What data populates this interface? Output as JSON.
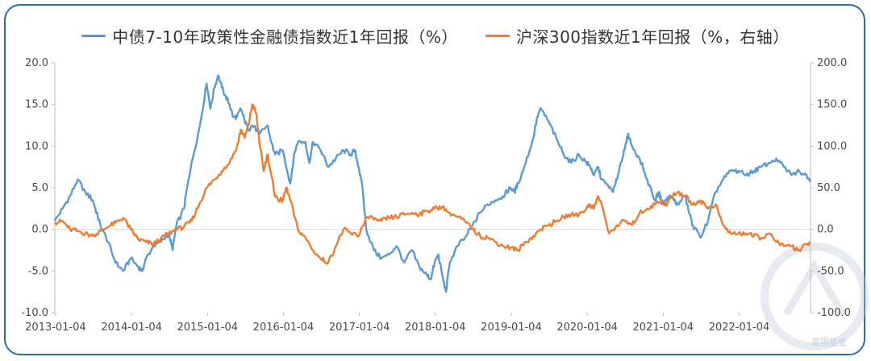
{
  "chart_data": {
    "type": "line",
    "title": "",
    "xlabel": "",
    "ylabel": "",
    "x_ticks": [
      "2013-01-04",
      "2014-01-04",
      "2015-01-04",
      "2016-01-04",
      "2017-01-04",
      "2018-01-04",
      "2019-01-04",
      "2020-01-04",
      "2021-01-04",
      "2022-01-04"
    ],
    "ylim_left": [
      -10,
      20
    ],
    "ylim_right": [
      -100,
      200
    ],
    "left_ticks": [
      "20.0",
      "15.0",
      "10.0",
      "5.0",
      "0.0",
      "-5.0",
      "-10.0"
    ],
    "right_ticks": [
      "200.0",
      "150.0",
      "100.0",
      "50.0",
      "0.0",
      "-50.0",
      "-100.0"
    ],
    "x_range": [
      2013.0,
      2022.95
    ],
    "grid": false,
    "legend_position": "top",
    "series": [
      {
        "name": "中债7-10年政策性金融债指数近1年回报（%）",
        "axis": "left",
        "color": "#5b9bd5",
        "x": [
          2013.0,
          2013.1,
          2013.2,
          2013.3,
          2013.4,
          2013.5,
          2013.55,
          2013.6,
          2013.7,
          2013.8,
          2013.9,
          2014.0,
          2014.1,
          2014.15,
          2014.2,
          2014.3,
          2014.4,
          2014.5,
          2014.55,
          2014.6,
          2014.7,
          2014.75,
          2014.8,
          2014.9,
          2015.0,
          2015.05,
          2015.1,
          2015.15,
          2015.2,
          2015.25,
          2015.3,
          2015.35,
          2015.4,
          2015.45,
          2015.5,
          2015.55,
          2015.6,
          2015.7,
          2015.8,
          2015.85,
          2015.9,
          2016.0,
          2016.1,
          2016.15,
          2016.2,
          2016.3,
          2016.35,
          2016.4,
          2016.5,
          2016.6,
          2016.7,
          2016.8,
          2016.9,
          2016.95,
          2017.0,
          2017.05,
          2017.1,
          2017.2,
          2017.3,
          2017.4,
          2017.5,
          2017.6,
          2017.7,
          2017.8,
          2017.9,
          2017.95,
          2018.0,
          2018.05,
          2018.1,
          2018.15,
          2018.2,
          2018.3,
          2018.4,
          2018.5,
          2018.6,
          2018.7,
          2018.8,
          2018.9,
          2018.95,
          2019.0,
          2019.05,
          2019.1,
          2019.2,
          2019.3,
          2019.35,
          2019.4,
          2019.5,
          2019.6,
          2019.7,
          2019.8,
          2019.9,
          2020.0,
          2020.05,
          2020.1,
          2020.15,
          2020.2,
          2020.3,
          2020.35,
          2020.4,
          2020.45,
          2020.5,
          2020.55,
          2020.6,
          2020.7,
          2020.8,
          2020.9,
          2020.95,
          2021.0,
          2021.05,
          2021.1,
          2021.15,
          2021.2,
          2021.3,
          2021.35,
          2021.4,
          2021.5,
          2021.6,
          2021.7,
          2021.8,
          2021.9,
          2022.0,
          2022.1,
          2022.2,
          2022.3,
          2022.4,
          2022.5,
          2022.6,
          2022.7,
          2022.8,
          2022.9,
          2022.95
        ],
        "values": [
          1.0,
          2.5,
          4.0,
          6.0,
          4.5,
          3.5,
          2.0,
          0.5,
          -1.5,
          -4.0,
          -5.0,
          -3.5,
          -4.5,
          -5.0,
          -3.5,
          -2.0,
          -1.5,
          -0.5,
          -2.5,
          0.5,
          2.5,
          5.5,
          8.0,
          12.0,
          17.5,
          14.5,
          17.0,
          18.5,
          17.0,
          16.0,
          15.0,
          13.5,
          13.5,
          14.5,
          13.0,
          12.0,
          12.5,
          11.5,
          12.5,
          10.5,
          9.0,
          9.5,
          5.5,
          9.0,
          10.5,
          10.5,
          8.0,
          10.5,
          9.5,
          7.5,
          8.5,
          9.5,
          9.0,
          9.5,
          7.5,
          5.0,
          0.0,
          -2.5,
          -3.5,
          -3.0,
          -2.0,
          -4.0,
          -2.5,
          -4.5,
          -5.5,
          -6.0,
          -4.0,
          -3.0,
          -5.5,
          -7.5,
          -4.0,
          -2.0,
          -1.0,
          0.5,
          2.0,
          3.0,
          3.5,
          4.0,
          4.5,
          5.0,
          4.5,
          5.5,
          8.0,
          11.0,
          13.5,
          14.5,
          13.0,
          11.0,
          9.0,
          8.0,
          9.0,
          8.0,
          7.5,
          6.5,
          7.5,
          6.0,
          5.0,
          4.5,
          6.0,
          8.0,
          9.5,
          11.5,
          10.0,
          8.5,
          6.0,
          3.5,
          4.5,
          3.0,
          3.5,
          4.0,
          3.5,
          3.0,
          4.0,
          2.0,
          0.5,
          -1.0,
          1.0,
          4.5,
          6.0,
          7.0,
          7.0,
          6.5,
          7.0,
          7.5,
          8.0,
          8.5,
          7.5,
          6.5,
          7.0,
          6.5,
          6.0
        ]
      },
      {
        "name": "沪深300指数近1年回报（%，右轴）",
        "axis": "right",
        "color": "#ed7d31",
        "x": [
          2013.0,
          2013.1,
          2013.2,
          2013.3,
          2013.4,
          2013.5,
          2013.6,
          2013.7,
          2013.8,
          2013.9,
          2014.0,
          2014.1,
          2014.2,
          2014.3,
          2014.4,
          2014.5,
          2014.6,
          2014.7,
          2014.8,
          2014.9,
          2015.0,
          2015.1,
          2015.2,
          2015.3,
          2015.4,
          2015.45,
          2015.5,
          2015.55,
          2015.6,
          2015.65,
          2015.7,
          2015.75,
          2015.8,
          2015.85,
          2015.9,
          2015.95,
          2016.0,
          2016.05,
          2016.1,
          2016.2,
          2016.3,
          2016.4,
          2016.5,
          2016.6,
          2016.7,
          2016.8,
          2016.9,
          2017.0,
          2017.1,
          2017.2,
          2017.3,
          2017.4,
          2017.5,
          2017.6,
          2017.7,
          2017.8,
          2017.9,
          2018.0,
          2018.1,
          2018.2,
          2018.3,
          2018.4,
          2018.5,
          2018.6,
          2018.7,
          2018.8,
          2018.9,
          2019.0,
          2019.1,
          2019.2,
          2019.3,
          2019.4,
          2019.5,
          2019.6,
          2019.7,
          2019.8,
          2019.9,
          2020.0,
          2020.05,
          2020.1,
          2020.15,
          2020.2,
          2020.3,
          2020.4,
          2020.5,
          2020.6,
          2020.7,
          2020.8,
          2020.9,
          2021.0,
          2021.05,
          2021.1,
          2021.2,
          2021.3,
          2021.4,
          2021.5,
          2021.6,
          2021.7,
          2021.8,
          2021.9,
          2022.0,
          2022.1,
          2022.2,
          2022.3,
          2022.4,
          2022.5,
          2022.6,
          2022.7,
          2022.8,
          2022.9,
          2022.95
        ],
        "values": [
          8.0,
          10.0,
          0.0,
          -2.0,
          -5.0,
          -8.0,
          -2.0,
          3.0,
          8.0,
          14.0,
          0.0,
          -12.0,
          -15.0,
          -18.0,
          -10.0,
          -5.0,
          0.0,
          3.0,
          10.0,
          30.0,
          50.0,
          60.0,
          70.0,
          80.0,
          100.0,
          120.0,
          110.0,
          125.0,
          150.0,
          140.0,
          100.0,
          70.0,
          90.0,
          65.0,
          40.0,
          35.0,
          35.0,
          50.0,
          35.0,
          0.0,
          -10.0,
          -25.0,
          -35.0,
          -40.0,
          -20.0,
          0.0,
          -5.0,
          -8.0,
          15.0,
          12.0,
          10.0,
          14.0,
          15.0,
          18.0,
          20.0,
          18.0,
          22.0,
          25.0,
          27.0,
          20.0,
          15.0,
          10.0,
          0.0,
          -8.0,
          -10.0,
          -15.0,
          -20.0,
          -22.0,
          -25.0,
          -15.0,
          -8.0,
          0.0,
          5.0,
          10.0,
          15.0,
          18.0,
          18.0,
          25.0,
          30.0,
          25.0,
          40.0,
          30.0,
          -5.0,
          5.0,
          10.0,
          5.0,
          20.0,
          25.0,
          30.0,
          35.0,
          28.0,
          38.0,
          45.0,
          40.0,
          30.0,
          35.0,
          25.0,
          30.0,
          5.0,
          -5.0,
          -5.0,
          -5.0,
          -8.0,
          -10.0,
          -5.0,
          -15.0,
          -20.0,
          -20.0,
          -25.0,
          -18.0,
          -15.0
        ]
      }
    ]
  },
  "legend": {
    "bond_label": "中债7-10年政策性金融债指数近1年回报（%）",
    "index_label": "沪深300指数近1年回报（%，右轴）",
    "bond_color": "#5b9bd5",
    "index_color": "#ed7d31"
  },
  "watermark": {
    "text": "富国基金"
  }
}
